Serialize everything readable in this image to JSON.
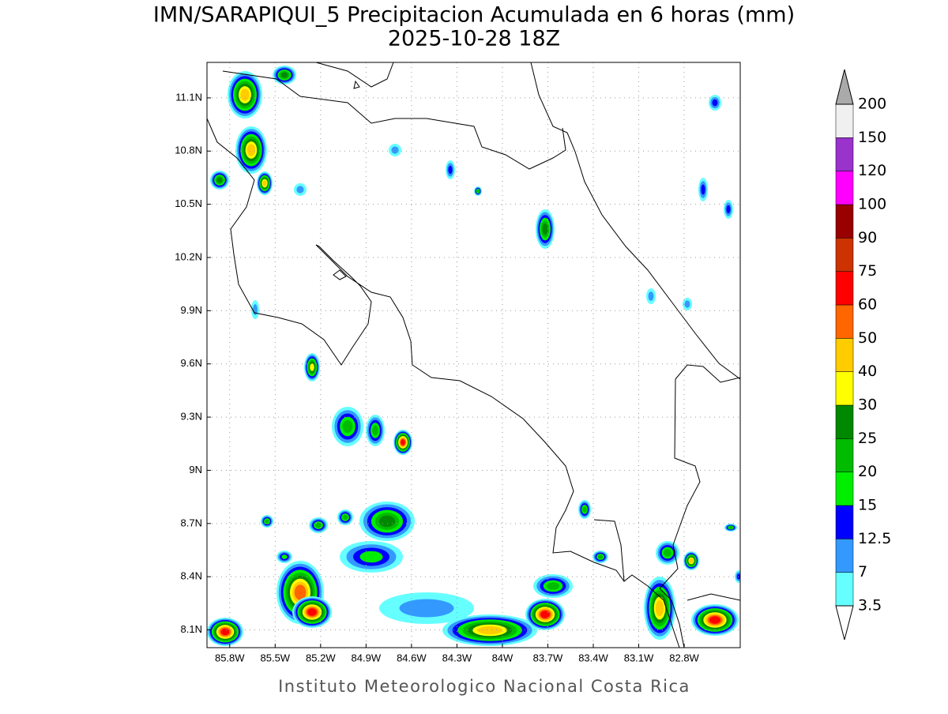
{
  "title": "IMN/SARAPIQUI_5 Precipitacion Acumulada en 6 horas (mm)",
  "subtitle": "2025-10-28 18Z",
  "footer": "Instituto Meteorologico Nacional Costa Rica",
  "map": {
    "xlim": [
      -85.95,
      -82.43
    ],
    "ylim": [
      8.0,
      11.3
    ],
    "xticks": [
      {
        "value": -85.8,
        "label": "85.8W"
      },
      {
        "value": -85.5,
        "label": "85.5W"
      },
      {
        "value": -85.2,
        "label": "85.2W"
      },
      {
        "value": -84.9,
        "label": "84.9W"
      },
      {
        "value": -84.6,
        "label": "84.6W"
      },
      {
        "value": -84.3,
        "label": "84.3W"
      },
      {
        "value": -84.0,
        "label": "84W"
      },
      {
        "value": -83.7,
        "label": "83.7W"
      },
      {
        "value": -83.4,
        "label": "83.4W"
      },
      {
        "value": -83.1,
        "label": "83.1W"
      },
      {
        "value": -82.8,
        "label": "82.8W"
      }
    ],
    "yticks": [
      {
        "value": 8.1,
        "label": "8.1N"
      },
      {
        "value": 8.4,
        "label": "8.4N"
      },
      {
        "value": 8.7,
        "label": "8.7N"
      },
      {
        "value": 9.0,
        "label": "9N"
      },
      {
        "value": 9.3,
        "label": "9.3N"
      },
      {
        "value": 9.6,
        "label": "9.6N"
      },
      {
        "value": 9.9,
        "label": "9.9N"
      },
      {
        "value": 10.2,
        "label": "10.2N"
      },
      {
        "value": 10.5,
        "label": "10.5N"
      },
      {
        "value": 10.8,
        "label": "10.8N"
      },
      {
        "value": 11.1,
        "label": "11.1N"
      }
    ],
    "grid": true
  },
  "colorbar": {
    "levels": [
      3.5,
      7,
      12.5,
      15,
      20,
      25,
      30,
      40,
      50,
      60,
      75,
      90,
      100,
      120,
      150,
      200
    ],
    "colors": [
      "#66ffff",
      "#3399ff",
      "#0000ff",
      "#00ee00",
      "#00bb00",
      "#008800",
      "#ffff00",
      "#ffcc00",
      "#ff6600",
      "#ff0000",
      "#cc3300",
      "#990000",
      "#ff00ff",
      "#9933cc",
      "#f0f0f0"
    ],
    "below_color": "#ffffff",
    "above_color": "#aaaaaa"
  }
}
